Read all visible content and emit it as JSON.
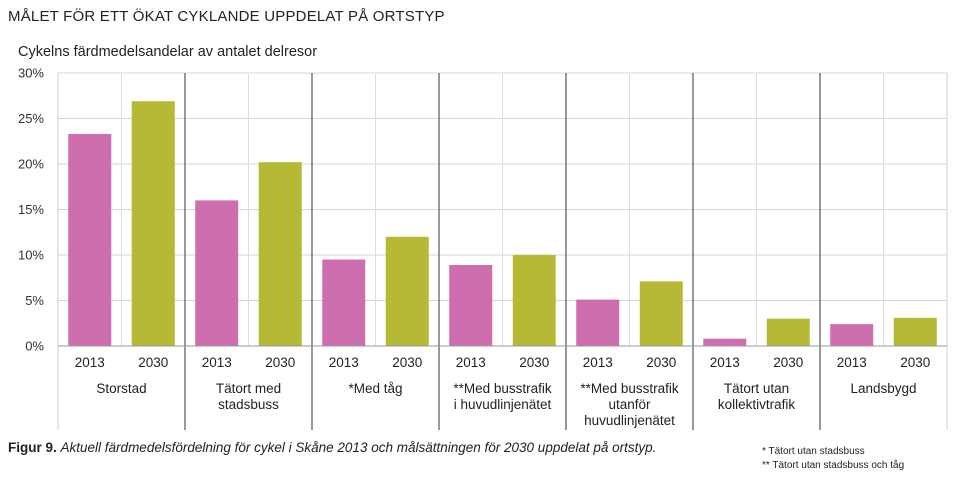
{
  "title": "MÅLET FÖR ETT ÖKAT CYKLANDE UPPDELAT PÅ ORTSTYP",
  "caption": {
    "label": "Figur 9.",
    "text": "Aktuell färdmedelsfördelning för cykel i Skåne 2013 och målsättningen för 2030 uppdelat på ortstyp."
  },
  "notes": [
    "* Tätort utan stadsbuss",
    "** Tätort utan stadsbuss och tåg"
  ],
  "chart_data": {
    "type": "bar",
    "title": "",
    "ylabel": "Cykelns färdmedelsandelar av antalet delresor",
    "ylim": [
      0,
      30
    ],
    "yticks": [
      "0%",
      "5%",
      "10%",
      "15%",
      "20%",
      "25%",
      "30%"
    ],
    "grid": true,
    "categories": [
      [
        "Storstad"
      ],
      [
        "Tätort med",
        "stadsbuss"
      ],
      [
        "*Med tåg"
      ],
      [
        "**Med busstrafik",
        "i huvudlinjenätet"
      ],
      [
        "**Med busstrafik",
        "utanför",
        "huvudlinjenätet"
      ],
      [
        "Tätort utan",
        "kollektivtrafik"
      ],
      [
        "Landsbygd"
      ]
    ],
    "series": [
      {
        "name": "2013",
        "color": "#cf6eae",
        "values": [
          23.3,
          16.0,
          9.5,
          8.9,
          5.1,
          0.8,
          2.4
        ]
      },
      {
        "name": "2030",
        "color": "#b5b935",
        "values": [
          26.9,
          20.2,
          12.0,
          10.0,
          7.1,
          3.0,
          3.1
        ]
      }
    ]
  }
}
